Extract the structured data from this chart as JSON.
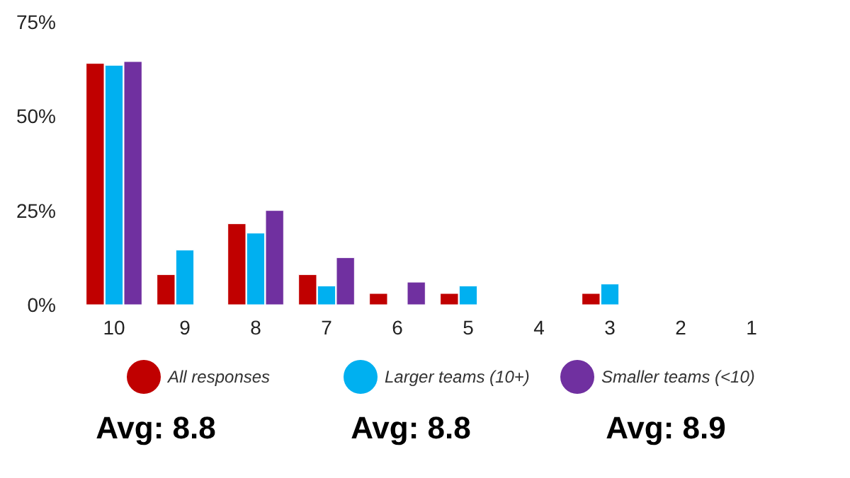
{
  "chart_data": {
    "type": "bar",
    "categories": [
      "10",
      "9",
      "8",
      "7",
      "6",
      "5",
      "4",
      "3",
      "2",
      "1"
    ],
    "series": [
      {
        "name": "All responses",
        "color": "#c00000",
        "values": [
          64,
          8,
          21.5,
          8,
          3,
          3,
          0,
          3,
          0,
          0
        ]
      },
      {
        "name": "Larger teams (10+)",
        "color": "#00b0f0",
        "values": [
          63.5,
          14.5,
          19,
          5,
          0,
          5,
          0,
          5.5,
          0,
          0
        ]
      },
      {
        "name": "Smaller teams (<10)",
        "color": "#7030a0",
        "values": [
          64.5,
          0,
          25,
          12.5,
          6,
          0,
          0,
          0,
          0,
          0
        ]
      }
    ],
    "ylim": [
      0,
      75
    ],
    "yticks": [
      {
        "value": 0,
        "label": "0%"
      },
      {
        "value": 25,
        "label": "25%"
      },
      {
        "value": 50,
        "label": "50%"
      },
      {
        "value": 75,
        "label": "75%"
      }
    ],
    "grid": false,
    "legend": "bottom",
    "annotations": [
      "Avg: 8.8",
      "Avg: 8.8",
      "Avg: 8.9"
    ]
  }
}
